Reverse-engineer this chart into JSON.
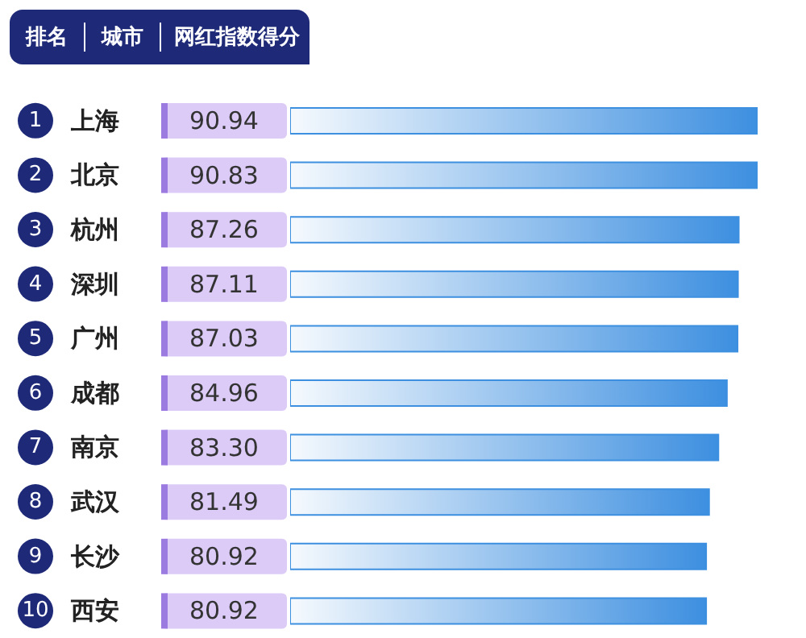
{
  "chart_data": {
    "type": "bar",
    "orientation": "horizontal",
    "ylabel": "城市",
    "xlabel": "网红指数得分",
    "categories": [
      "上海",
      "北京",
      "杭州",
      "深圳",
      "广州",
      "成都",
      "南京",
      "武汉",
      "长沙",
      "西安"
    ],
    "values": [
      90.94,
      90.83,
      87.26,
      87.11,
      87.03,
      84.96,
      83.3,
      81.49,
      80.92,
      80.92
    ],
    "value_labels": [
      "90.94",
      "90.83",
      "87.26",
      "87.11",
      "87.03",
      "84.96",
      "83.30",
      "81.49",
      "80.92",
      "80.92"
    ],
    "color": "#3d8fe0",
    "annotations": [
      "排名",
      "1",
      "2",
      "3",
      "4",
      "5",
      "6",
      "7",
      "8",
      "9",
      "10"
    ]
  }
}
